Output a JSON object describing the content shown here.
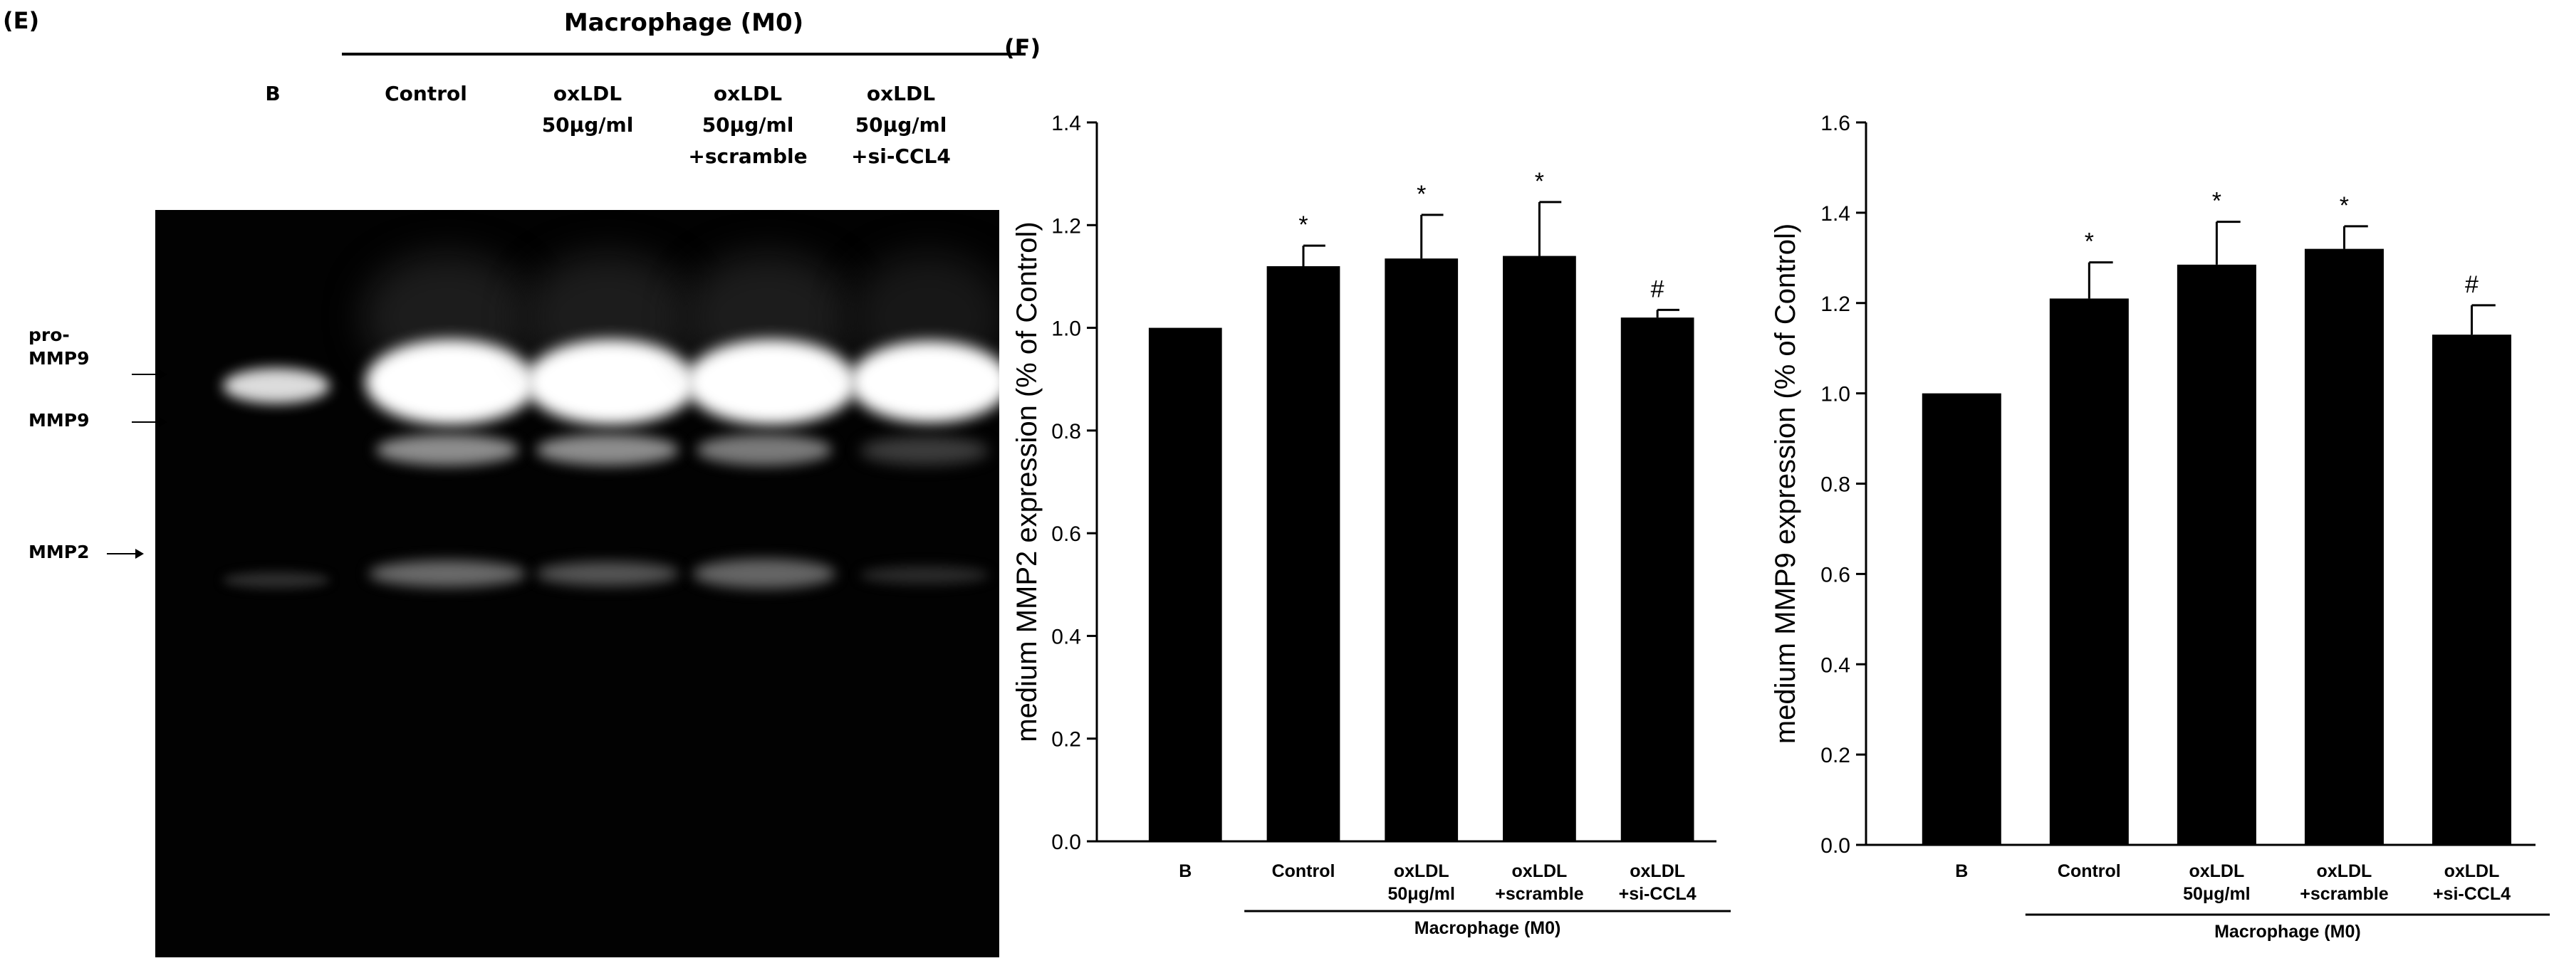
{
  "panel_e": {
    "letter": "(E)",
    "group_header": "Macrophage (M0)",
    "lanes": [
      {
        "lines": [
          "B"
        ]
      },
      {
        "lines": [
          "Control"
        ]
      },
      {
        "lines": [
          "oxLDL",
          "50μg/ml"
        ]
      },
      {
        "lines": [
          "oxLDL",
          "50μg/ml",
          "+scramble"
        ]
      },
      {
        "lines": [
          "oxLDL",
          "50μg/ml",
          "+si-CCL4"
        ]
      }
    ],
    "markers": {
      "pro_mmp9": [
        "pro-",
        "MMP9"
      ],
      "mmp9": "MMP9",
      "mmp2": "MMP2"
    }
  },
  "panel_f": {
    "letter": "(F)"
  },
  "chart_data": [
    {
      "type": "bar",
      "title": "",
      "categories": [
        {
          "lines": [
            "B"
          ]
        },
        {
          "lines": [
            "Control"
          ]
        },
        {
          "lines": [
            "oxLDL",
            "50μg/ml"
          ]
        },
        {
          "lines": [
            "oxLDL",
            "+scramble"
          ]
        },
        {
          "lines": [
            "oxLDL",
            "+si-CCL4"
          ]
        }
      ],
      "values": [
        1.0,
        1.12,
        1.135,
        1.14,
        1.02
      ],
      "errors": [
        0,
        0.04,
        0.085,
        0.105,
        0.015
      ],
      "annotations": [
        "",
        "*",
        "*",
        "*",
        "#"
      ],
      "ylabel": "medium MMP2 expression (% of Control)",
      "ylim": [
        0,
        1.4
      ],
      "yticks": [
        0,
        0.2,
        0.4,
        0.6,
        0.8,
        1.0,
        1.2,
        1.4
      ],
      "ytick_labels": [
        "0.0",
        "0.2",
        "0.4",
        "0.6",
        "0.8",
        "1.0",
        "1.2",
        "1.4"
      ],
      "group_label": "Macrophage (M0)",
      "bar_color": "#000000",
      "grid": false
    },
    {
      "type": "bar",
      "title": "",
      "categories": [
        {
          "lines": [
            "B"
          ]
        },
        {
          "lines": [
            "Control"
          ]
        },
        {
          "lines": [
            "oxLDL",
            "50μg/ml"
          ]
        },
        {
          "lines": [
            "oxLDL",
            "+scramble"
          ]
        },
        {
          "lines": [
            "oxLDL",
            "+si-CCL4"
          ]
        }
      ],
      "values": [
        1.0,
        1.21,
        1.285,
        1.32,
        1.13
      ],
      "errors": [
        0,
        0.08,
        0.095,
        0.05,
        0.065
      ],
      "annotations": [
        "",
        "*",
        "*",
        "*",
        "#"
      ],
      "ylabel": "medium MMP9 expression (% of Control)",
      "ylim": [
        0,
        1.6
      ],
      "yticks": [
        0,
        0.2,
        0.4,
        0.6,
        0.8,
        1.0,
        1.2,
        1.4,
        1.6
      ],
      "ytick_labels": [
        "0.0",
        "0.2",
        "0.4",
        "0.6",
        "0.8",
        "1.0",
        "1.2",
        "1.4",
        "1.6"
      ],
      "group_label": "Macrophage (M0)",
      "bar_color": "#000000",
      "grid": false
    }
  ]
}
